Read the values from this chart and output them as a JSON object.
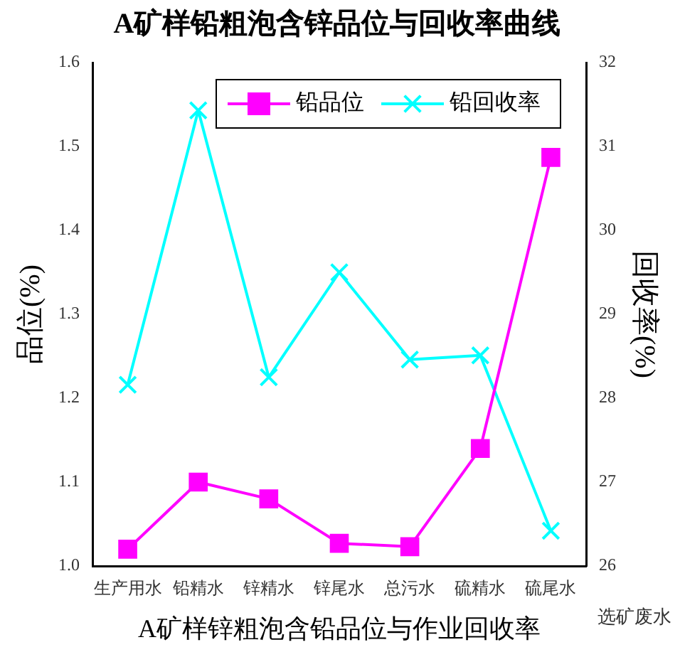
{
  "chart_data": {
    "type": "line",
    "title": "A矿样铅粗泡含锌品位与回收率曲线",
    "xlabel": "A矿样锌粗泡含铅品位与作业回收率",
    "ylabel": "品位(%)",
    "y2label": "回收率(%)",
    "categories": [
      "生产用水",
      "铅精水",
      "锌精水",
      "锌尾水",
      "总污水",
      "硫精水",
      "硫尾水"
    ],
    "series": [
      {
        "name": "铅品位",
        "color": "#ff00ff",
        "marker": "square",
        "values": [
          1.02,
          1.1,
          1.08,
          1.027,
          1.023,
          1.14,
          1.487
        ]
      },
      {
        "name": "铅回收率",
        "color": "#00ffff",
        "marker": "cross",
        "axis": "y2",
        "values": [
          28.16,
          31.43,
          28.25,
          29.5,
          28.46,
          28.51,
          26.42
        ]
      }
    ],
    "ylim": [
      1,
      1.6
    ],
    "yticks": [
      {
        "value": 1,
        "label": "1.0"
      },
      1.1,
      1.2,
      1.3,
      1.4,
      1.5,
      1.6
    ],
    "y2lim": [
      26,
      32
    ],
    "y2ticks": [
      26,
      27,
      28,
      29,
      30,
      31,
      32
    ],
    "grid": false,
    "legend": "top right",
    "line_style": "solid",
    "annotations": [
      "选矿废水"
    ]
  }
}
